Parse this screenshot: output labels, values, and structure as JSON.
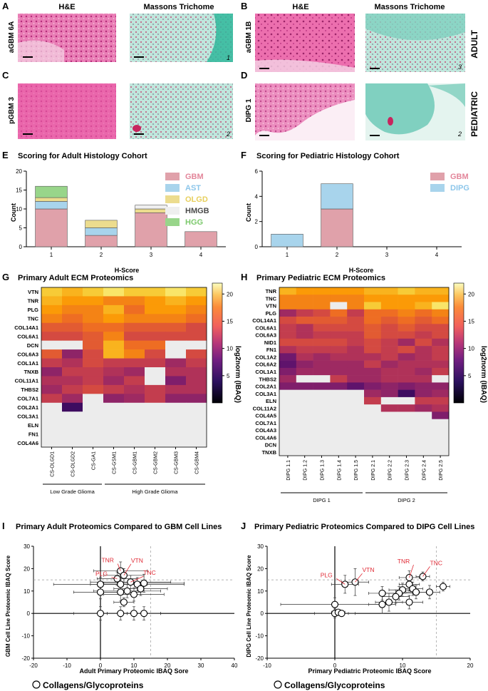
{
  "histology": {
    "header_he": "H&E",
    "header_mt": "Massons Trichome",
    "panels": [
      {
        "letter": "A",
        "sample": "aGBM 6A",
        "score": "1"
      },
      {
        "letter": "B",
        "sample": "aGBM 1B",
        "score": "3"
      },
      {
        "letter": "C",
        "sample": "pGBM 3",
        "score": "2"
      },
      {
        "letter": "D",
        "sample": "DIPG 1",
        "score": "2"
      }
    ],
    "group_adult": "ADULT",
    "group_pediatric": "PEDIATRIC",
    "colors": {
      "he": "#d9529a",
      "he_light": "#f2b8d4",
      "mt": "#6fc9b7",
      "mt_light": "#d6efe9",
      "mt_bright": "#2fb79b"
    }
  },
  "chart_data": [
    {
      "id": "E",
      "type": "bar",
      "stacked": true,
      "letter": "E",
      "title": "Scoring for Adult Histology Cohort",
      "xlabel": "H-Score",
      "ylabel": "Count",
      "categories": [
        "1",
        "2",
        "3",
        "4"
      ],
      "ylim": [
        0,
        20
      ],
      "yticks": [
        0,
        5,
        10,
        15,
        20
      ],
      "series": [
        {
          "name": "GBM",
          "color": "#e0a1aa",
          "values": [
            10,
            3,
            9,
            4
          ]
        },
        {
          "name": "AST",
          "color": "#a8d4ec",
          "values": [
            2,
            2,
            0,
            0
          ]
        },
        {
          "name": "OLGD",
          "color": "#ecdc8e",
          "values": [
            1,
            2,
            1,
            0
          ]
        },
        {
          "name": "HMGB",
          "color": "#efefef",
          "values": [
            0,
            0,
            1,
            0
          ]
        },
        {
          "name": "HGG",
          "color": "#98d58a",
          "values": [
            3,
            0,
            0,
            0
          ]
        }
      ],
      "legend_text_colors": [
        "#e3869a",
        "#8cc6ea",
        "#e7cf5c",
        "#4a4a4a",
        "#7cc96c"
      ]
    },
    {
      "id": "F",
      "type": "bar",
      "stacked": true,
      "letter": "F",
      "title": "Scoring for Pediatric Histology Cohort",
      "xlabel": "H-Score",
      "ylabel": "Count",
      "categories": [
        "1",
        "2",
        "3",
        "4"
      ],
      "ylim": [
        0,
        6
      ],
      "yticks": [
        0,
        2,
        4,
        6
      ],
      "series": [
        {
          "name": "GBM",
          "color": "#e0a1aa",
          "values": [
            0,
            3,
            0,
            0
          ]
        },
        {
          "name": "DIPG",
          "color": "#a8d4ec",
          "values": [
            1,
            2,
            0,
            0
          ]
        }
      ],
      "legend_text_colors": [
        "#e3869a",
        "#8cc6ea"
      ]
    },
    {
      "id": "G",
      "type": "heatmap",
      "letter": "G",
      "title": "Primary Adult ECM Proteomics",
      "rows": [
        "VTN",
        "TNR",
        "PLG",
        "TNC",
        "COL14A1",
        "COL6A1",
        "DCN",
        "COL6A3",
        "COL1A1",
        "TNXB",
        "COL11A1",
        "THBS2",
        "COL7A1",
        "COL2A1",
        "COL3A1",
        "ELN",
        "FN1",
        "COL4A6"
      ],
      "columns": [
        "CS-OLGD1",
        "CS-OLGD2",
        "CS-GA1",
        "CS-GSM1",
        "CS-GBM1",
        "CS-GBM2",
        "CS-GBM3",
        "CS-GBM4"
      ],
      "values": [
        [
          20,
          19,
          20,
          21,
          20,
          20,
          21,
          20
        ],
        [
          19,
          18,
          18,
          17,
          17,
          18,
          19,
          18
        ],
        [
          18,
          17,
          17,
          19,
          16,
          18,
          18,
          17
        ],
        [
          17,
          16,
          17,
          18,
          17,
          17,
          17,
          16
        ],
        [
          15,
          15,
          16,
          16,
          15,
          15,
          15,
          14
        ],
        [
          14,
          14,
          15,
          17,
          14,
          14,
          14,
          14
        ],
        [
          null,
          null,
          15,
          19,
          16,
          16,
          null,
          null
        ],
        [
          15,
          10,
          14,
          19,
          17,
          14,
          null,
          14
        ],
        [
          13,
          12,
          14,
          13,
          13,
          13,
          11,
          13
        ],
        [
          10,
          13,
          13,
          12,
          11,
          null,
          12,
          12
        ],
        [
          12,
          12,
          13,
          11,
          13,
          null,
          9,
          12
        ],
        [
          11,
          13,
          14,
          13,
          12,
          13,
          12,
          12
        ],
        [
          13,
          11,
          null,
          10,
          11,
          13,
          10,
          10
        ],
        [
          null,
          5,
          null,
          null,
          null,
          null,
          null,
          null
        ],
        [
          null,
          null,
          null,
          null,
          null,
          null,
          null,
          null
        ],
        [
          null,
          null,
          null,
          null,
          null,
          null,
          null,
          null
        ],
        [
          null,
          null,
          null,
          null,
          null,
          null,
          null,
          null
        ],
        [
          null,
          null,
          null,
          null,
          null,
          null,
          null,
          null
        ]
      ],
      "groups": [
        {
          "label": "Low Grade Glioma",
          "span": [
            0,
            2
          ]
        },
        {
          "label": "High Grade Glioma",
          "span": [
            3,
            7
          ]
        }
      ],
      "colorbar": {
        "min": 0,
        "max": 22,
        "ticks": [
          5,
          10,
          15,
          20
        ],
        "label": "log2norm (IBAQ)"
      }
    },
    {
      "id": "H",
      "type": "heatmap",
      "letter": "H",
      "title": "Primary Pediatric ECM Proteomics",
      "rows": [
        "TNR",
        "TNC",
        "VTN",
        "PLG",
        "COL14A1",
        "COL6A1",
        "COL6A3",
        "NID1",
        "FN1",
        "COL1A2",
        "COL6A2",
        "COL1A1",
        "THBS2",
        "COL2A1",
        "COL3A1",
        "ELN",
        "COL11A2",
        "COL4A5",
        "COL7A1",
        "COL4A3",
        "COL4A6",
        "DCN",
        "TNXB"
      ],
      "columns": [
        "DIPG 1.1",
        "DIPG 1.2",
        "DIPG 1.3",
        "DIPG 1.4",
        "DIPG 1.5",
        "DIPG 2.1",
        "DIPG 2.2",
        "DIPG 2.3",
        "DIPG 2.4",
        "DIPG 2.5"
      ],
      "values": [
        [
          19,
          18,
          18,
          18,
          18,
          19,
          19,
          20,
          19,
          19
        ],
        [
          17,
          17,
          17,
          17,
          17,
          18,
          18,
          18,
          18,
          18
        ],
        [
          17,
          17,
          17,
          null,
          17,
          20,
          18,
          18,
          19,
          21
        ],
        [
          11,
          13,
          14,
          16,
          13,
          16,
          16,
          17,
          16,
          17
        ],
        [
          14,
          15,
          15,
          15,
          14,
          16,
          15,
          16,
          15,
          16
        ],
        [
          13,
          12,
          14,
          14,
          14,
          15,
          14,
          15,
          14,
          14
        ],
        [
          13,
          12,
          13,
          13,
          13,
          15,
          14,
          14,
          13,
          14
        ],
        [
          14,
          14,
          14,
          14,
          13,
          14,
          13,
          11,
          14,
          12
        ],
        [
          12,
          13,
          13,
          13,
          12,
          14,
          13,
          14,
          12,
          13
        ],
        [
          8,
          12,
          11,
          12,
          12,
          12,
          13,
          11,
          12,
          13
        ],
        [
          7,
          10,
          11,
          11,
          11,
          13,
          11,
          12,
          12,
          12
        ],
        [
          9,
          11,
          11,
          11,
          11,
          11,
          12,
          12,
          11,
          13
        ],
        [
          11,
          null,
          null,
          13,
          11,
          11,
          12,
          12,
          12,
          null
        ],
        [
          9,
          9,
          9,
          9,
          7,
          9,
          10,
          9,
          10,
          10
        ],
        [
          null,
          null,
          null,
          null,
          null,
          11,
          10,
          5,
          10,
          11
        ],
        [
          null,
          null,
          null,
          null,
          null,
          13,
          null,
          null,
          13,
          13
        ],
        [
          null,
          null,
          null,
          null,
          null,
          null,
          12,
          12,
          11,
          12
        ],
        [
          null,
          null,
          null,
          null,
          null,
          null,
          null,
          null,
          null,
          9
        ],
        [
          null,
          null,
          null,
          null,
          null,
          null,
          null,
          null,
          null,
          null
        ],
        [
          null,
          null,
          null,
          null,
          null,
          null,
          null,
          null,
          null,
          null
        ],
        [
          null,
          null,
          null,
          null,
          null,
          null,
          null,
          null,
          null,
          null
        ],
        [
          null,
          null,
          null,
          null,
          null,
          null,
          null,
          null,
          null,
          null
        ],
        [
          null,
          null,
          null,
          null,
          null,
          null,
          null,
          null,
          null,
          null
        ]
      ],
      "groups": [
        {
          "label": "DIPG 1",
          "span": [
            0,
            4
          ]
        },
        {
          "label": "DIPG 2",
          "span": [
            5,
            9
          ]
        }
      ],
      "colorbar": {
        "min": 0,
        "max": 22,
        "ticks": [
          5,
          10,
          15,
          20
        ],
        "label": "log2norm (IBAQ)"
      }
    },
    {
      "id": "I",
      "type": "scatter",
      "letter": "I",
      "title": "Primary Adult Proteomics Compared to GBM Cell Lines",
      "xlabel": "Adult Primary Proteomic IBAQ Sore",
      "ylabel": "GBM Cell Line Proteomic IBAQ Score",
      "xlim": [
        -20,
        40
      ],
      "ylim": [
        -20,
        30
      ],
      "xticks": [
        -20,
        -10,
        0,
        10,
        20,
        30,
        40
      ],
      "yticks": [
        -20,
        -10,
        0,
        10,
        20,
        30
      ],
      "threshold_x": 15,
      "threshold_y": 15,
      "legend": "Collagens/Glycoproteins",
      "points": [
        {
          "x": 6,
          "y": 19,
          "xerr": 8,
          "yerr": 4
        },
        {
          "x": 7,
          "y": 17,
          "xerr": 6,
          "yerr": 3
        },
        {
          "x": 5,
          "y": 15.5,
          "xerr": 6,
          "yerr": 3
        },
        {
          "x": 9,
          "y": 14,
          "xerr": 12,
          "yerr": 3
        },
        {
          "x": 11,
          "y": 13,
          "xerr": 14,
          "yerr": 3
        },
        {
          "x": 13,
          "y": 13.5,
          "xerr": 12,
          "yerr": 4
        },
        {
          "x": 0,
          "y": 13,
          "xerr": 14,
          "yerr": 3
        },
        {
          "x": 6,
          "y": 13,
          "xerr": 6,
          "yerr": 3
        },
        {
          "x": 12,
          "y": 11,
          "xerr": 8,
          "yerr": 3
        },
        {
          "x": 8,
          "y": 10,
          "xerr": 10,
          "yerr": 3
        },
        {
          "x": 0,
          "y": 9.5,
          "xerr": 8,
          "yerr": 3
        },
        {
          "x": 6,
          "y": 9.5,
          "xerr": 6,
          "yerr": 4
        },
        {
          "x": 10,
          "y": 8.5,
          "xerr": 9,
          "yerr": 3
        },
        {
          "x": 7,
          "y": 5,
          "xerr": 3,
          "yerr": 2
        },
        {
          "x": 0,
          "y": 0,
          "xerr": 8,
          "yerr": 3
        },
        {
          "x": 6,
          "y": 0,
          "xerr": 4,
          "yerr": 3
        },
        {
          "x": 10,
          "y": 0,
          "xerr": 8,
          "yerr": 3
        },
        {
          "x": 13,
          "y": 0,
          "xerr": 5,
          "yerr": 3
        }
      ],
      "labels": [
        {
          "text": "TNR",
          "x": 6,
          "y": 19,
          "dx": -18,
          "dy": -12
        },
        {
          "text": "VTN",
          "x": 7,
          "y": 17,
          "dx": 10,
          "dy": -18
        },
        {
          "text": "TNC",
          "x": 9,
          "y": 14,
          "dx": 18,
          "dy": -10
        },
        {
          "text": "PLG",
          "x": 5,
          "y": 15.5,
          "dx": -22,
          "dy": -4
        }
      ],
      "label_color": "#e02a35"
    },
    {
      "id": "J",
      "type": "scatter",
      "letter": "J",
      "title": "Primary Pediatric Proteomics Compared to DIPG Cell Lines",
      "xlabel": "Primary Pediatric Proteomic IBAQ Score",
      "ylabel": "DIPG Cell Line Proteomic IBAQ Score",
      "xlim": [
        -10,
        20
      ],
      "ylim": [
        -20,
        30
      ],
      "xticks": [
        -10,
        0,
        10,
        20
      ],
      "yticks": [
        -20,
        -10,
        0,
        10,
        20,
        30
      ],
      "threshold_x": 15,
      "threshold_y": 15,
      "legend": "Collagens/Glycoproteins",
      "points": [
        {
          "x": 1.5,
          "y": 13,
          "xerr": 2,
          "yerr": 4
        },
        {
          "x": 3,
          "y": 14,
          "xerr": 2,
          "yerr": 6
        },
        {
          "x": 11,
          "y": 16,
          "xerr": 1.5,
          "yerr": 3
        },
        {
          "x": 13,
          "y": 16.5,
          "xerr": 1,
          "yerr": 2
        },
        {
          "x": 16,
          "y": 12,
          "xerr": 1,
          "yerr": 2
        },
        {
          "x": 14,
          "y": 9.5,
          "xerr": 1.5,
          "yerr": 3
        },
        {
          "x": 11,
          "y": 13,
          "xerr": 1.5,
          "yerr": 3
        },
        {
          "x": 11.5,
          "y": 11,
          "xerr": 1.5,
          "yerr": 3
        },
        {
          "x": 10,
          "y": 10.5,
          "xerr": 2,
          "yerr": 3
        },
        {
          "x": 12,
          "y": 9.5,
          "xerr": 1.5,
          "yerr": 3
        },
        {
          "x": 9.5,
          "y": 9,
          "xerr": 2,
          "yerr": 3
        },
        {
          "x": 7,
          "y": 9,
          "xerr": 2,
          "yerr": 3
        },
        {
          "x": 9,
          "y": 7.5,
          "xerr": 2,
          "yerr": 3
        },
        {
          "x": 8,
          "y": 5,
          "xerr": 2,
          "yerr": 4
        },
        {
          "x": 7,
          "y": 4,
          "xerr": 2,
          "yerr": 4
        },
        {
          "x": 11,
          "y": 5,
          "xerr": 2,
          "yerr": 3
        },
        {
          "x": 0,
          "y": 4,
          "xerr": 8,
          "yerr": 3
        },
        {
          "x": 0,
          "y": 0,
          "xerr": 3,
          "yerr": 2
        },
        {
          "x": 0.5,
          "y": 0.5,
          "xerr": 1,
          "yerr": 1
        },
        {
          "x": 1,
          "y": 0,
          "xerr": 1,
          "yerr": 1
        }
      ],
      "labels": [
        {
          "text": "PLG",
          "x": 1.5,
          "y": 13,
          "dx": -26,
          "dy": -10
        },
        {
          "text": "VTN",
          "x": 3,
          "y": 14,
          "dx": 10,
          "dy": -14
        },
        {
          "text": "TNR",
          "x": 11,
          "y": 16,
          "dx": -8,
          "dy": -20
        },
        {
          "text": "TNC",
          "x": 13,
          "y": 16.5,
          "dx": 10,
          "dy": -16
        }
      ],
      "label_color": "#e02a35"
    }
  ]
}
